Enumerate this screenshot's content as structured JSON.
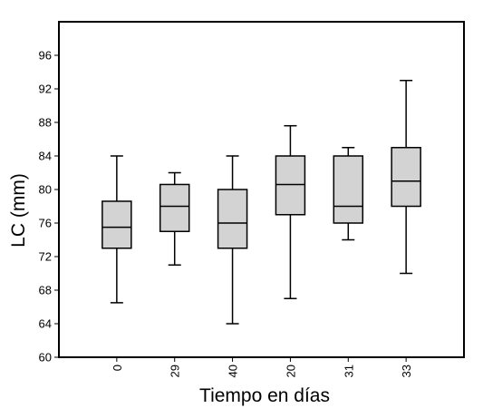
{
  "chart_data": {
    "type": "boxplot",
    "title": "",
    "xlabel": "Tiempo en días",
    "ylabel": "LC (mm)",
    "ylim": [
      60,
      100
    ],
    "yticks": [
      60,
      64,
      68,
      72,
      76,
      80,
      84,
      88,
      92,
      96
    ],
    "grid": false,
    "categories": [
      "0",
      "29",
      "40",
      "20",
      "31",
      "33"
    ],
    "boxes": [
      {
        "category": "0",
        "min": 66.5,
        "q1": 73,
        "median": 75.5,
        "q3": 78.6,
        "max": 84
      },
      {
        "category": "29",
        "min": 71,
        "q1": 75,
        "median": 78,
        "q3": 80.6,
        "max": 82
      },
      {
        "category": "40",
        "min": 64,
        "q1": 73,
        "median": 76,
        "q3": 80,
        "max": 84
      },
      {
        "category": "20",
        "min": 67,
        "q1": 77,
        "median": 80.6,
        "q3": 84,
        "max": 87.6
      },
      {
        "category": "31",
        "min": 74,
        "q1": 76,
        "median": 78,
        "q3": 84,
        "max": 85
      },
      {
        "category": "33",
        "min": 70,
        "q1": 78,
        "median": 81,
        "q3": 85,
        "max": 93
      }
    ],
    "colors": {
      "box_fill": "#d3d3d3",
      "stroke": "#000000",
      "background": "#ffffff"
    }
  }
}
